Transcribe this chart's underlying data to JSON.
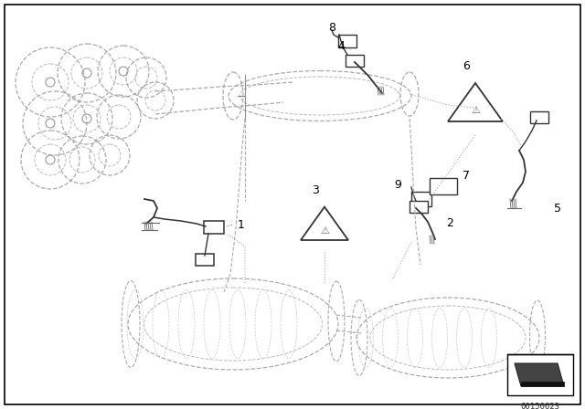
{
  "bg_color": "#ffffff",
  "line_color": "#000000",
  "dark_gray": "#333333",
  "mid_gray": "#666666",
  "light_gray": "#999999",
  "dashed_gray": "#888888",
  "watermark": "00150623",
  "figsize": [
    6.4,
    4.48
  ],
  "dpi": 100
}
